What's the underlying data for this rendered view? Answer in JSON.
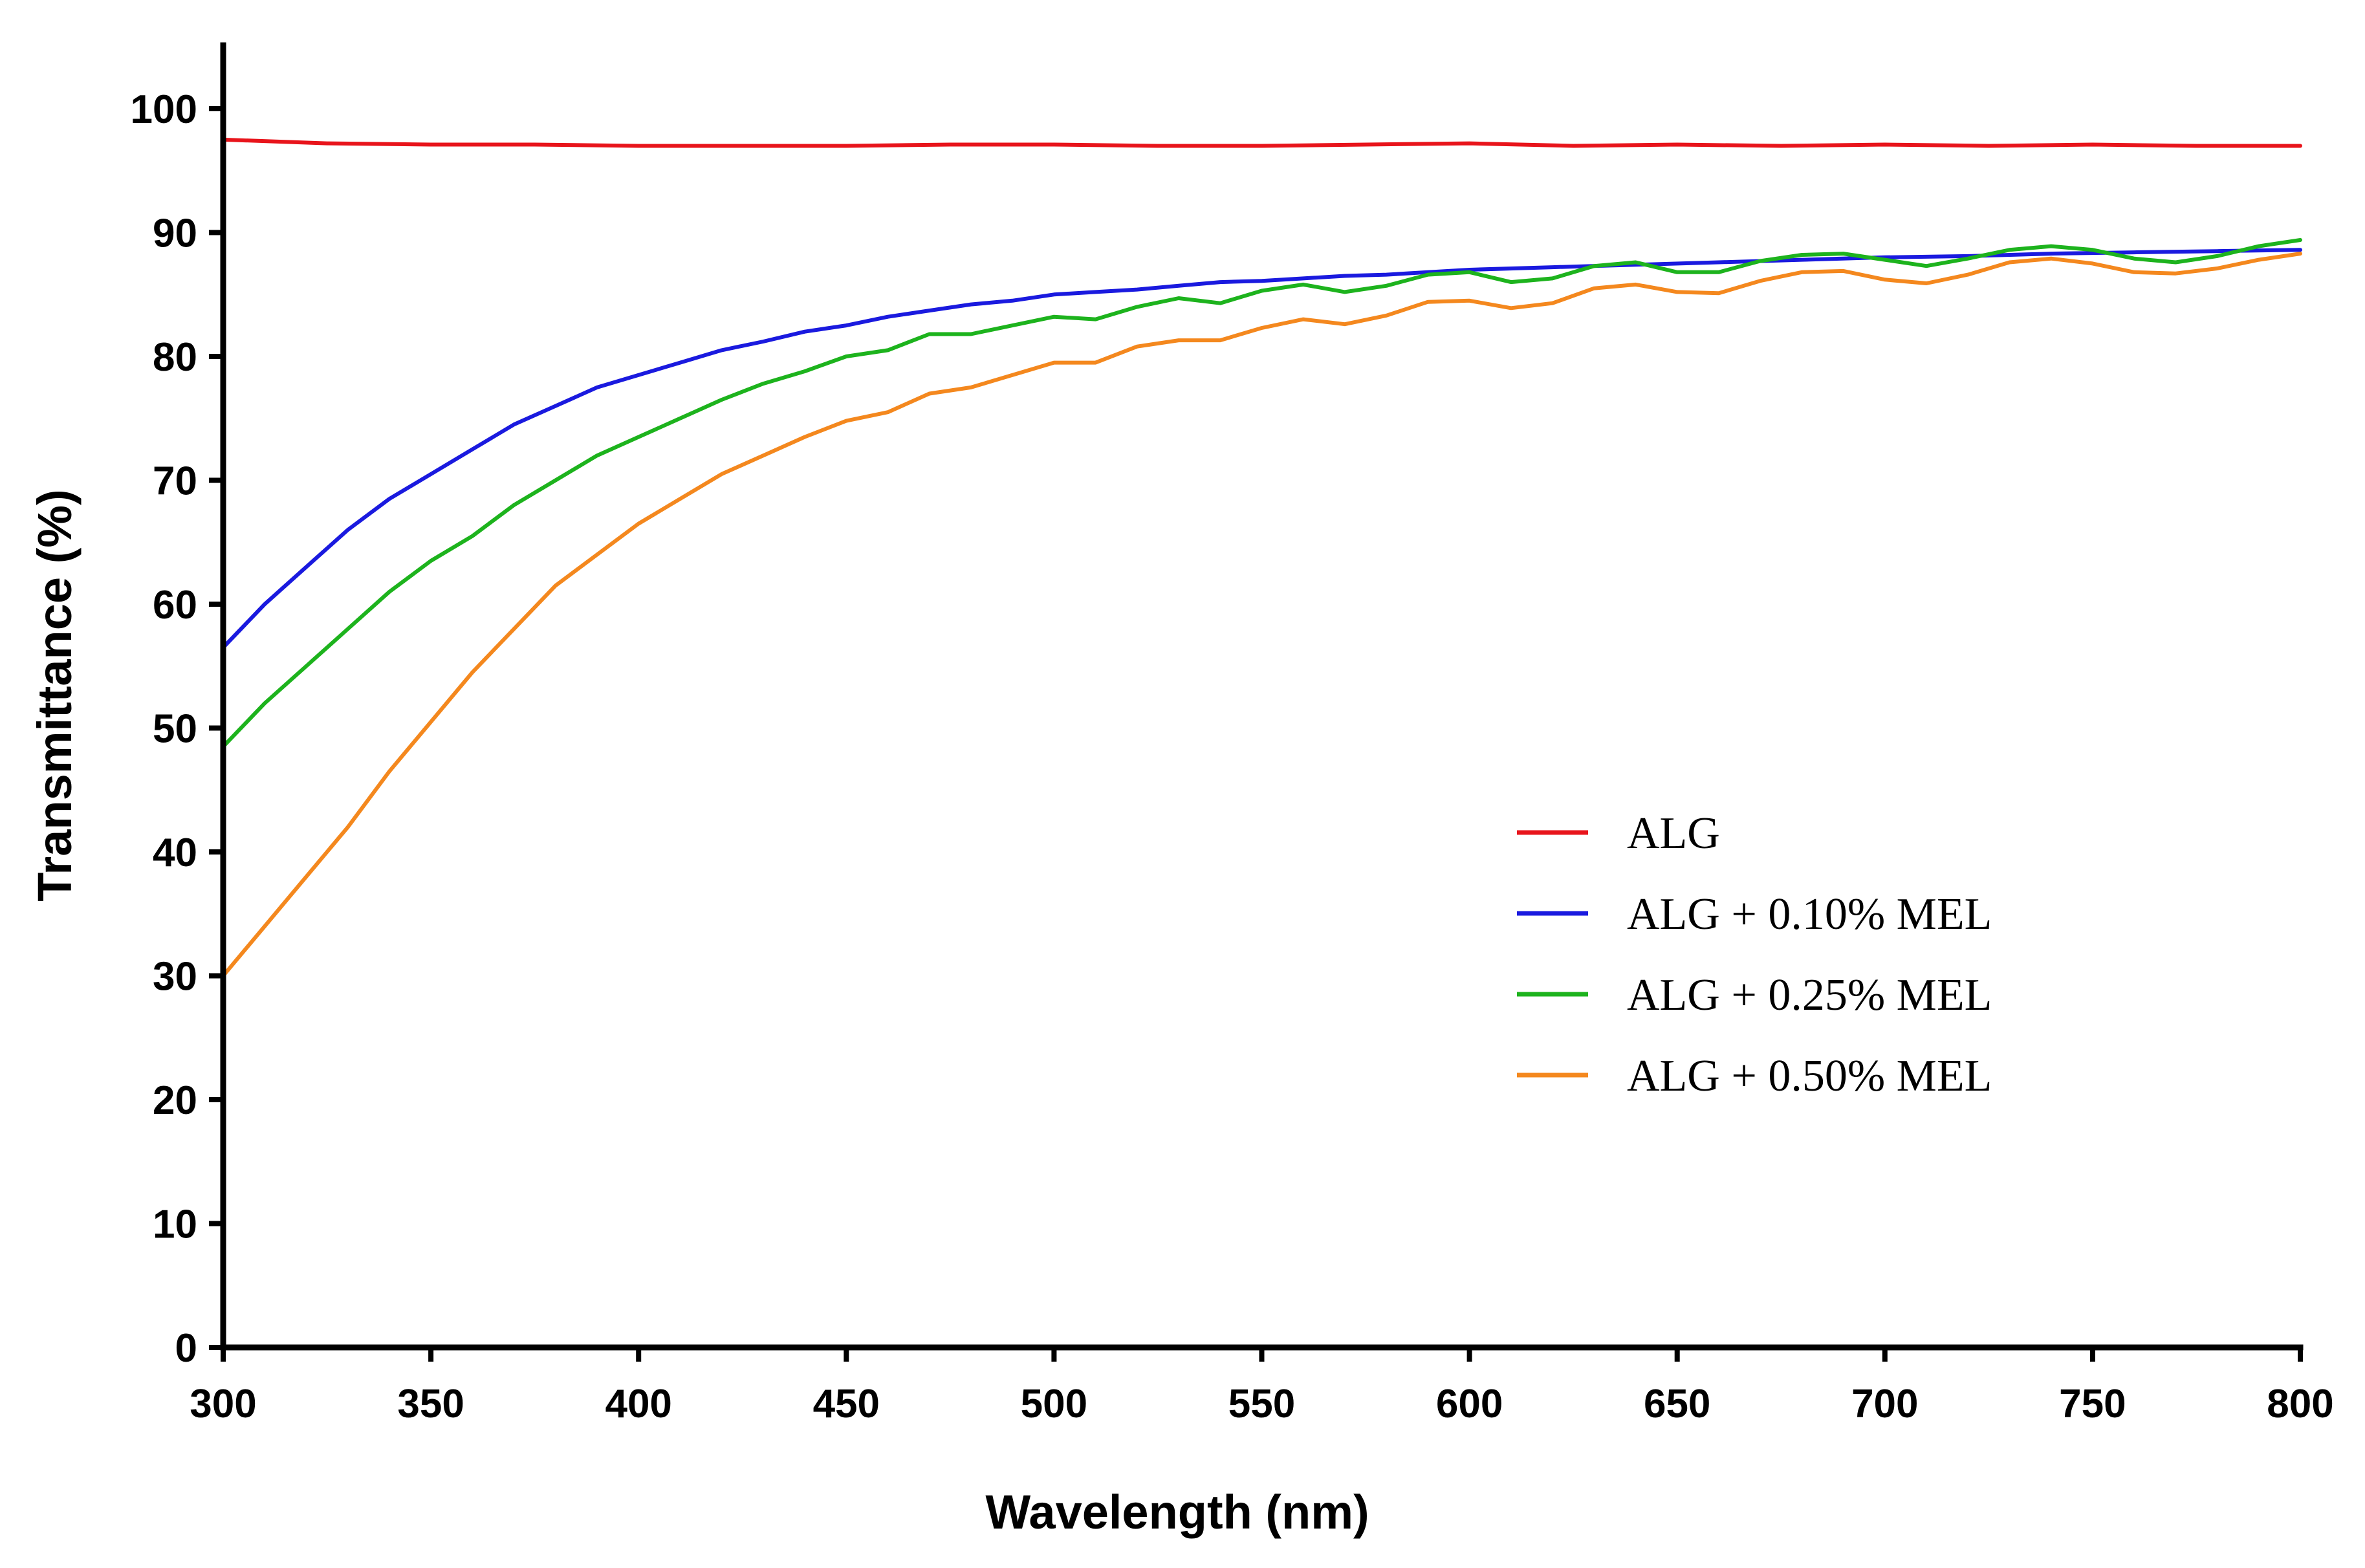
{
  "chart_data": {
    "type": "line",
    "title": "",
    "xlabel": "Wavelength (nm)",
    "ylabel": "Transmittance (%)",
    "xlim": [
      300,
      800
    ],
    "ylim": [
      0,
      105
    ],
    "xticks": [
      300,
      350,
      400,
      450,
      500,
      550,
      600,
      650,
      700,
      750,
      800
    ],
    "yticks": [
      0,
      10,
      20,
      30,
      40,
      50,
      60,
      70,
      80,
      90,
      100
    ],
    "grid": false,
    "legend_position": "center-right",
    "series": [
      {
        "name": "ALG",
        "color": "#e8141b",
        "x": [
          300,
          325,
          350,
          375,
          400,
          425,
          450,
          475,
          500,
          525,
          550,
          575,
          600,
          625,
          650,
          675,
          700,
          725,
          750,
          775,
          800
        ],
        "y": [
          97.5,
          97.2,
          97.1,
          97.1,
          97.0,
          97.0,
          97.0,
          97.1,
          97.1,
          97.0,
          97.0,
          97.1,
          97.2,
          97.0,
          97.1,
          97.0,
          97.1,
          97.0,
          97.1,
          97.0,
          97.0
        ]
      },
      {
        "name": "ALG + 0.10% MEL",
        "color": "#1a1adf",
        "x": [
          300,
          310,
          320,
          330,
          340,
          350,
          360,
          370,
          380,
          390,
          400,
          410,
          420,
          430,
          440,
          450,
          460,
          470,
          480,
          490,
          500,
          510,
          520,
          530,
          540,
          550,
          560,
          570,
          580,
          590,
          600,
          620,
          640,
          660,
          680,
          700,
          720,
          740,
          760,
          780,
          800
        ],
        "y": [
          56.5,
          60.0,
          63.0,
          66.0,
          68.5,
          70.5,
          72.5,
          74.5,
          76.0,
          77.5,
          78.5,
          79.5,
          80.5,
          81.2,
          82.0,
          82.5,
          83.2,
          83.7,
          84.2,
          84.5,
          85.0,
          85.2,
          85.4,
          85.7,
          86.0,
          86.1,
          86.3,
          86.5,
          86.6,
          86.8,
          87.0,
          87.2,
          87.4,
          87.6,
          87.8,
          88.0,
          88.1,
          88.3,
          88.4,
          88.5,
          88.6
        ]
      },
      {
        "name": "ALG + 0.25% MEL",
        "color": "#1db31d",
        "x": [
          300,
          310,
          320,
          330,
          340,
          350,
          360,
          370,
          380,
          390,
          400,
          410,
          420,
          430,
          440,
          450,
          460,
          470,
          480,
          490,
          500,
          510,
          520,
          530,
          540,
          550,
          560,
          570,
          580,
          590,
          600,
          610,
          620,
          630,
          640,
          650,
          660,
          670,
          680,
          690,
          700,
          710,
          720,
          730,
          740,
          750,
          760,
          770,
          780,
          790,
          800
        ],
        "y": [
          48.5,
          52.0,
          55.0,
          58.0,
          61.0,
          63.5,
          65.5,
          68.0,
          70.0,
          72.0,
          73.5,
          75.0,
          76.5,
          77.8,
          78.8,
          80.0,
          80.5,
          81.8,
          81.8,
          82.5,
          83.2,
          83.0,
          84.0,
          84.7,
          84.3,
          85.3,
          85.8,
          85.2,
          85.7,
          86.6,
          86.8,
          86.0,
          86.3,
          87.3,
          87.6,
          86.8,
          86.8,
          87.7,
          88.2,
          88.3,
          87.8,
          87.3,
          87.9,
          88.6,
          88.9,
          88.6,
          87.9,
          87.6,
          88.1,
          88.9,
          89.4
        ]
      },
      {
        "name": "ALG + 0.50% MEL",
        "color": "#f4881e",
        "x": [
          300,
          310,
          320,
          330,
          340,
          350,
          360,
          370,
          380,
          390,
          400,
          410,
          420,
          430,
          440,
          450,
          460,
          470,
          480,
          490,
          500,
          510,
          520,
          530,
          540,
          550,
          560,
          570,
          580,
          590,
          600,
          610,
          620,
          630,
          640,
          650,
          660,
          670,
          680,
          690,
          700,
          710,
          720,
          730,
          740,
          750,
          760,
          770,
          780,
          790,
          800
        ],
        "y": [
          30.0,
          34.0,
          38.0,
          42.0,
          46.5,
          50.5,
          54.5,
          58.0,
          61.5,
          64.0,
          66.5,
          68.5,
          70.5,
          72.0,
          73.5,
          74.8,
          75.5,
          77.0,
          77.5,
          78.5,
          79.5,
          79.5,
          80.8,
          81.3,
          81.3,
          82.3,
          83.0,
          82.6,
          83.3,
          84.4,
          84.5,
          83.9,
          84.3,
          85.5,
          85.8,
          85.2,
          85.1,
          86.1,
          86.8,
          86.9,
          86.2,
          85.9,
          86.6,
          87.6,
          87.9,
          87.5,
          86.8,
          86.7,
          87.1,
          87.8,
          88.3
        ]
      }
    ]
  }
}
